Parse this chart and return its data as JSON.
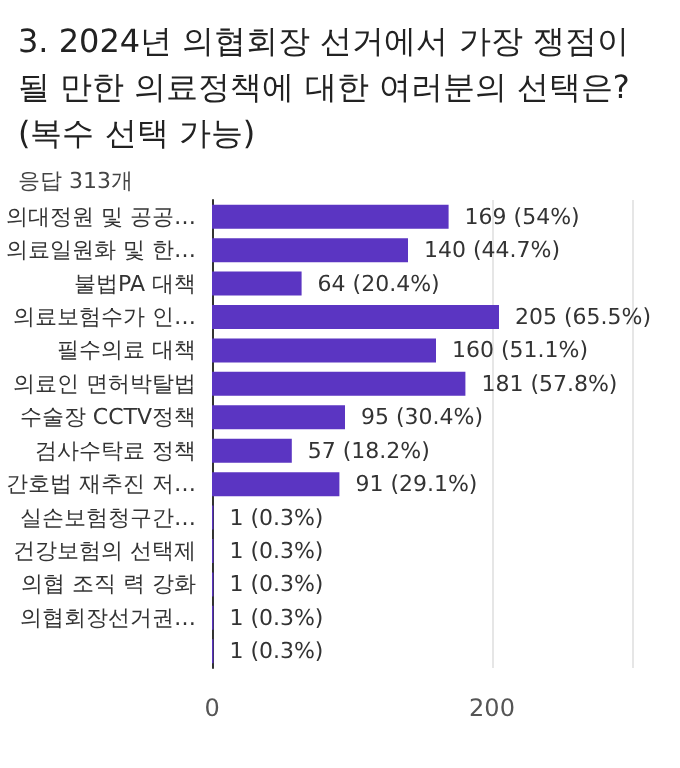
{
  "chart_data": {
    "type": "bar",
    "orientation": "horizontal",
    "title": "3. 2024년 의협회장 선거에서 가장 쟁점이\n될 만한 의료정책에 대한 여러분의 선택은?\n(복수 선택 가능)",
    "subtitle": "응답 313개",
    "categories": [
      "의대정원 및 공공…",
      "의료일원화 및 한…",
      "불법PA 대책",
      "의료보험수가 인…",
      "필수의료 대책",
      "의료인 면허박탈법",
      "수술장 CCTV정책",
      "검사수탁료 정책",
      "간호법 재추진 저…",
      "실손보험청구간…",
      "건강보험의 선택제",
      "의협 조직 력 강화",
      "의협회장선거권…",
      null
    ],
    "values": [
      169,
      140,
      64,
      205,
      160,
      181,
      95,
      57,
      91,
      1,
      1,
      1,
      1,
      1
    ],
    "value_labels": [
      "169 (54%)",
      "140 (44.7%)",
      "64 (20.4%)",
      "205 (65.5%)",
      "160 (51.1%)",
      "181 (57.8%)",
      "95 (30.4%)",
      "57 (18.2%)",
      "91 (29.1%)",
      "1 (0.3%)",
      "1 (0.3%)",
      "1 (0.3%)",
      "1 (0.3%)",
      "1 (0.3%)"
    ],
    "color": "#5b35c2",
    "xlim": [
      0,
      300
    ],
    "xticks": [
      0,
      200,
      {
        "value": 300,
        "label": null
      }
    ],
    "grid": "x"
  }
}
